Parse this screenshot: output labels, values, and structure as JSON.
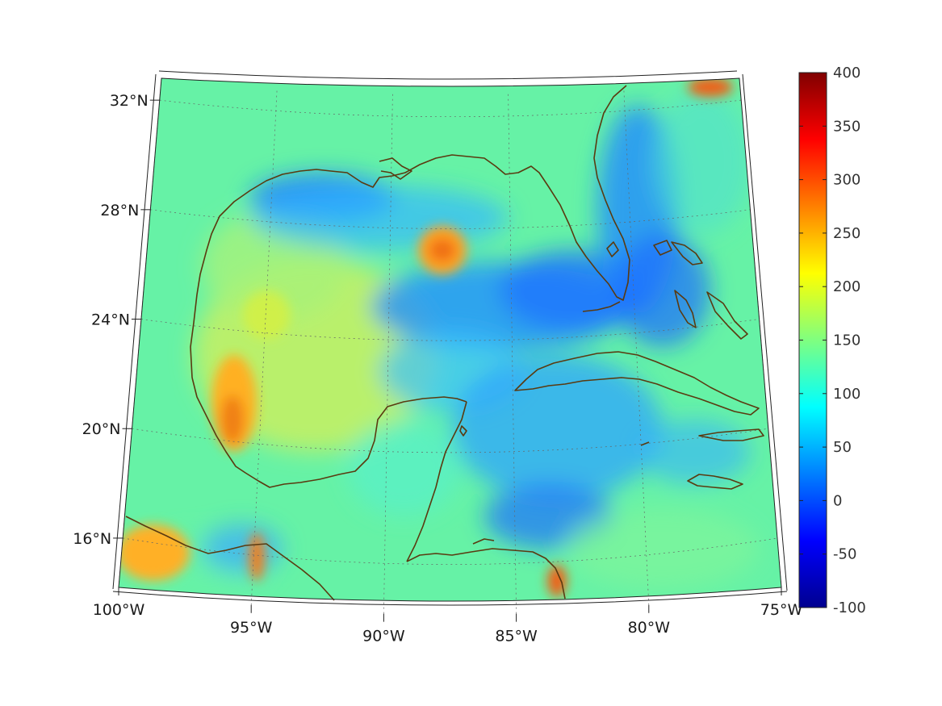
{
  "map": {
    "projection": "lambert-conic",
    "lat_range": [
      14,
      33
    ],
    "lon_range": [
      -100,
      -75
    ],
    "lat_ticks": [
      {
        "value": 32,
        "label": "32°N"
      },
      {
        "value": 28,
        "label": "28°N"
      },
      {
        "value": 24,
        "label": "24°N"
      },
      {
        "value": 20,
        "label": "20°N"
      },
      {
        "value": 16,
        "label": "16°N"
      }
    ],
    "lon_ticks": [
      {
        "value": -100,
        "label": "100°W"
      },
      {
        "value": -95,
        "label": "95°W"
      },
      {
        "value": -90,
        "label": "90°W"
      },
      {
        "value": -85,
        "label": "85°W"
      },
      {
        "value": -80,
        "label": "80°W"
      },
      {
        "value": -75,
        "label": "75°W"
      }
    ],
    "grid": true,
    "coastline_color": "#5a3a10"
  },
  "colorbar": {
    "colormap": "jet",
    "min": -100,
    "max": 400,
    "ticks": [
      "400",
      "350",
      "300",
      "250",
      "200",
      "150",
      "100",
      "50",
      "0",
      "-50",
      "-100"
    ]
  }
}
